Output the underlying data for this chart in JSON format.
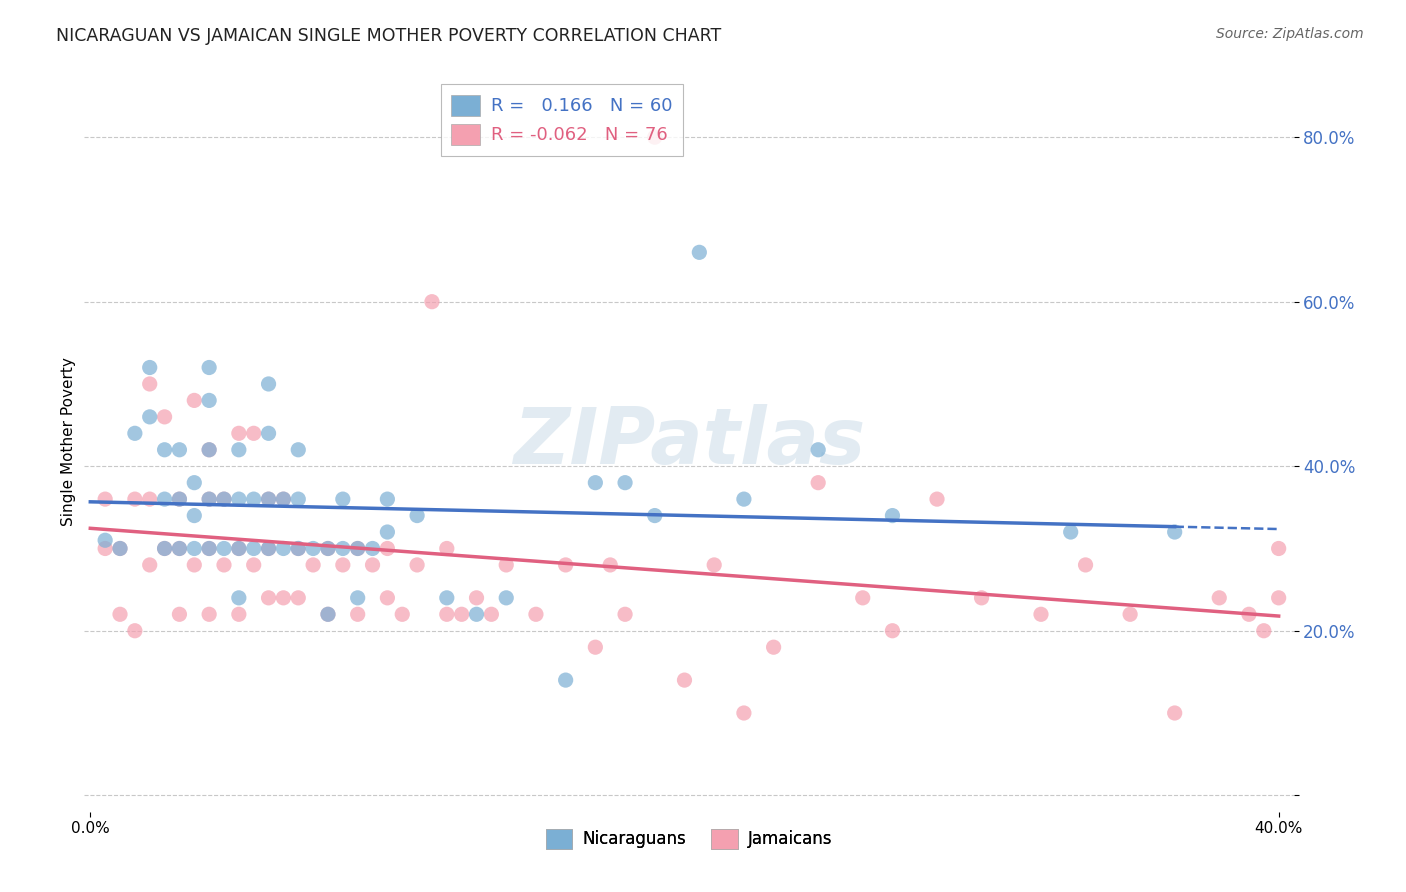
{
  "title": "NICARAGUAN VS JAMAICAN SINGLE MOTHER POVERTY CORRELATION CHART",
  "source": "Source: ZipAtlas.com",
  "ylabel": "Single Mother Poverty",
  "xlim": [
    -0.002,
    0.405
  ],
  "ylim": [
    -0.02,
    0.88
  ],
  "y_ticks": [
    0.0,
    0.2,
    0.4,
    0.6,
    0.8
  ],
  "y_tick_labels": [
    "",
    "20.0%",
    "40.0%",
    "60.0%",
    "80.0%"
  ],
  "x_ticks": [
    0.0,
    0.4
  ],
  "x_tick_labels": [
    "0.0%",
    "40.0%"
  ],
  "nicaraguan_R": 0.166,
  "nicaraguan_N": 60,
  "jamaican_R": -0.062,
  "jamaican_N": 76,
  "nicaraguan_color": "#7bafd4",
  "jamaican_color": "#f4a0b0",
  "trendline_nicaraguan_color": "#4472c4",
  "trendline_jamaican_color": "#e06080",
  "watermark": "ZIPatlas",
  "background_color": "#ffffff",
  "grid_color": "#c8c8c8",
  "scatter_alpha": 0.7,
  "scatter_size": 120,
  "nicaraguan_x": [
    0.005,
    0.01,
    0.015,
    0.02,
    0.02,
    0.025,
    0.025,
    0.025,
    0.03,
    0.03,
    0.03,
    0.035,
    0.035,
    0.035,
    0.04,
    0.04,
    0.04,
    0.04,
    0.04,
    0.045,
    0.045,
    0.05,
    0.05,
    0.05,
    0.05,
    0.055,
    0.055,
    0.06,
    0.06,
    0.06,
    0.06,
    0.065,
    0.065,
    0.07,
    0.07,
    0.07,
    0.075,
    0.08,
    0.08,
    0.085,
    0.085,
    0.09,
    0.09,
    0.095,
    0.1,
    0.1,
    0.11,
    0.12,
    0.13,
    0.14,
    0.16,
    0.17,
    0.18,
    0.19,
    0.205,
    0.22,
    0.245,
    0.27,
    0.33,
    0.365
  ],
  "nicaraguan_y": [
    0.31,
    0.3,
    0.44,
    0.46,
    0.52,
    0.3,
    0.36,
    0.42,
    0.3,
    0.36,
    0.42,
    0.3,
    0.34,
    0.38,
    0.3,
    0.36,
    0.42,
    0.48,
    0.52,
    0.3,
    0.36,
    0.24,
    0.3,
    0.36,
    0.42,
    0.3,
    0.36,
    0.3,
    0.36,
    0.44,
    0.5,
    0.3,
    0.36,
    0.3,
    0.36,
    0.42,
    0.3,
    0.22,
    0.3,
    0.3,
    0.36,
    0.24,
    0.3,
    0.3,
    0.32,
    0.36,
    0.34,
    0.24,
    0.22,
    0.24,
    0.14,
    0.38,
    0.38,
    0.34,
    0.66,
    0.36,
    0.42,
    0.34,
    0.32,
    0.32
  ],
  "jamaican_x": [
    0.005,
    0.005,
    0.01,
    0.01,
    0.015,
    0.015,
    0.02,
    0.02,
    0.02,
    0.025,
    0.025,
    0.03,
    0.03,
    0.03,
    0.035,
    0.035,
    0.04,
    0.04,
    0.04,
    0.04,
    0.045,
    0.045,
    0.05,
    0.05,
    0.05,
    0.055,
    0.055,
    0.06,
    0.06,
    0.06,
    0.065,
    0.065,
    0.07,
    0.07,
    0.075,
    0.08,
    0.08,
    0.085,
    0.09,
    0.09,
    0.095,
    0.1,
    0.1,
    0.105,
    0.11,
    0.115,
    0.12,
    0.12,
    0.125,
    0.13,
    0.135,
    0.14,
    0.15,
    0.16,
    0.17,
    0.175,
    0.18,
    0.19,
    0.2,
    0.21,
    0.22,
    0.23,
    0.245,
    0.26,
    0.27,
    0.285,
    0.3,
    0.32,
    0.335,
    0.35,
    0.365,
    0.38,
    0.39,
    0.395,
    0.4,
    0.4
  ],
  "jamaican_y": [
    0.3,
    0.36,
    0.22,
    0.3,
    0.2,
    0.36,
    0.28,
    0.36,
    0.5,
    0.3,
    0.46,
    0.22,
    0.3,
    0.36,
    0.28,
    0.48,
    0.22,
    0.3,
    0.36,
    0.42,
    0.28,
    0.36,
    0.22,
    0.3,
    0.44,
    0.28,
    0.44,
    0.24,
    0.3,
    0.36,
    0.24,
    0.36,
    0.24,
    0.3,
    0.28,
    0.22,
    0.3,
    0.28,
    0.22,
    0.3,
    0.28,
    0.24,
    0.3,
    0.22,
    0.28,
    0.6,
    0.22,
    0.3,
    0.22,
    0.24,
    0.22,
    0.28,
    0.22,
    0.28,
    0.18,
    0.28,
    0.22,
    0.8,
    0.14,
    0.28,
    0.1,
    0.18,
    0.38,
    0.24,
    0.2,
    0.36,
    0.24,
    0.22,
    0.28,
    0.22,
    0.1,
    0.24,
    0.22,
    0.2,
    0.3,
    0.24
  ]
}
